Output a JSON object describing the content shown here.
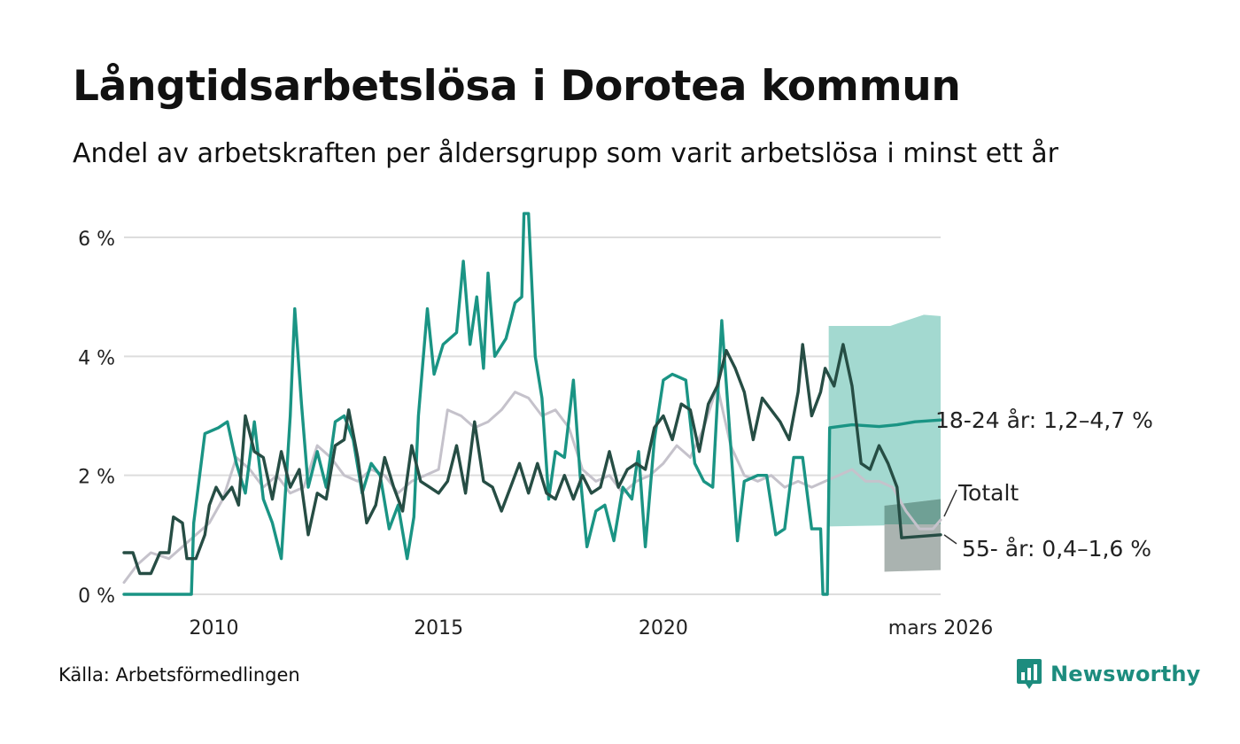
{
  "title": "Långtidsarbetslösa i Dorotea kommun",
  "subtitle": "Andel av arbetskraften per åldersgrupp som varit arbetslösa i minst ett år",
  "source": "Källa: Arbetsförmedlingen",
  "brand": {
    "name": "Newsworthy",
    "icon": "newsworthy-logo-icon"
  },
  "colors": {
    "total": "#c5c2cb",
    "youth": "#1a9484",
    "youth_band": "#a3d9d0",
    "senior": "#264d44",
    "senior_band": "#aab3b0",
    "senior_band_overlap": "#6fa095",
    "grid": "#dddddd"
  },
  "chart_data": {
    "type": "line",
    "title": "Långtidsarbetslösa i Dorotea kommun",
    "xlabel": "",
    "ylabel": "",
    "x_range": [
      2008.0,
      2026.17
    ],
    "ylim": [
      0,
      6.6
    ],
    "y_ticks": [
      0,
      2,
      4,
      6
    ],
    "y_tick_labels": [
      "0 %",
      "2 %",
      "4 %",
      "6 %"
    ],
    "x_ticks": [
      2010,
      2015,
      2020,
      2026.17
    ],
    "x_tick_labels": [
      "2010",
      "2015",
      "2020",
      "mars 2026"
    ],
    "grid": true,
    "series": [
      {
        "name": "Totalt",
        "key": "total",
        "label": "Totalt",
        "points": [
          [
            2008.0,
            0.2
          ],
          [
            2008.3,
            0.5
          ],
          [
            2008.6,
            0.7
          ],
          [
            2009.0,
            0.6
          ],
          [
            2009.3,
            0.8
          ],
          [
            2009.6,
            1.0
          ],
          [
            2009.9,
            1.2
          ],
          [
            2010.2,
            1.6
          ],
          [
            2010.5,
            2.3
          ],
          [
            2010.8,
            2.1
          ],
          [
            2011.1,
            1.8
          ],
          [
            2011.4,
            2.0
          ],
          [
            2011.7,
            1.7
          ],
          [
            2012.0,
            1.8
          ],
          [
            2012.3,
            2.5
          ],
          [
            2012.6,
            2.3
          ],
          [
            2012.9,
            2.0
          ],
          [
            2013.2,
            1.9
          ],
          [
            2013.5,
            2.1
          ],
          [
            2013.8,
            2.0
          ],
          [
            2014.1,
            1.7
          ],
          [
            2014.4,
            1.9
          ],
          [
            2014.7,
            2.0
          ],
          [
            2015.0,
            2.1
          ],
          [
            2015.2,
            3.1
          ],
          [
            2015.5,
            3.0
          ],
          [
            2015.8,
            2.8
          ],
          [
            2016.1,
            2.9
          ],
          [
            2016.4,
            3.1
          ],
          [
            2016.7,
            3.4
          ],
          [
            2017.0,
            3.3
          ],
          [
            2017.3,
            3.0
          ],
          [
            2017.6,
            3.1
          ],
          [
            2017.9,
            2.8
          ],
          [
            2018.2,
            2.1
          ],
          [
            2018.5,
            1.9
          ],
          [
            2018.8,
            2.0
          ],
          [
            2019.1,
            1.7
          ],
          [
            2019.4,
            1.9
          ],
          [
            2019.7,
            2.0
          ],
          [
            2020.0,
            2.2
          ],
          [
            2020.3,
            2.5
          ],
          [
            2020.6,
            2.3
          ],
          [
            2020.9,
            2.8
          ],
          [
            2021.2,
            3.5
          ],
          [
            2021.5,
            2.5
          ],
          [
            2021.8,
            2.0
          ],
          [
            2022.1,
            1.9
          ],
          [
            2022.4,
            2.0
          ],
          [
            2022.7,
            1.8
          ],
          [
            2023.0,
            1.9
          ],
          [
            2023.3,
            1.8
          ],
          [
            2023.6,
            1.9
          ],
          [
            2023.9,
            2.0
          ],
          [
            2024.2,
            2.1
          ],
          [
            2024.5,
            1.9
          ],
          [
            2024.8,
            1.9
          ],
          [
            2025.1,
            1.8
          ],
          [
            2025.4,
            1.4
          ],
          [
            2025.7,
            1.1
          ],
          [
            2026.0,
            1.1
          ],
          [
            2026.17,
            1.25
          ]
        ]
      },
      {
        "name": "18-24 år",
        "key": "youth",
        "label": "18-24 år: 1,2–4,7 %",
        "band": [
          1.2,
          4.7
        ],
        "points": [
          [
            2008.0,
            0.0
          ],
          [
            2009.5,
            0.0
          ],
          [
            2009.55,
            1.2
          ],
          [
            2009.8,
            2.7
          ],
          [
            2010.1,
            2.8
          ],
          [
            2010.3,
            2.9
          ],
          [
            2010.5,
            2.2
          ],
          [
            2010.7,
            1.7
          ],
          [
            2010.9,
            2.9
          ],
          [
            2011.1,
            1.6
          ],
          [
            2011.3,
            1.2
          ],
          [
            2011.5,
            0.6
          ],
          [
            2011.7,
            3.0
          ],
          [
            2011.8,
            4.8
          ],
          [
            2011.95,
            3.2
          ],
          [
            2012.1,
            1.8
          ],
          [
            2012.3,
            2.4
          ],
          [
            2012.5,
            1.8
          ],
          [
            2012.7,
            2.9
          ],
          [
            2012.9,
            3.0
          ],
          [
            2013.1,
            2.6
          ],
          [
            2013.3,
            1.7
          ],
          [
            2013.5,
            2.2
          ],
          [
            2013.7,
            2.0
          ],
          [
            2013.9,
            1.1
          ],
          [
            2014.1,
            1.5
          ],
          [
            2014.3,
            0.6
          ],
          [
            2014.45,
            1.3
          ],
          [
            2014.55,
            3.0
          ],
          [
            2014.75,
            4.8
          ],
          [
            2014.9,
            3.7
          ],
          [
            2015.1,
            4.2
          ],
          [
            2015.4,
            4.4
          ],
          [
            2015.55,
            5.6
          ],
          [
            2015.7,
            4.2
          ],
          [
            2015.85,
            5.0
          ],
          [
            2016.0,
            3.8
          ],
          [
            2016.1,
            5.4
          ],
          [
            2016.25,
            4.0
          ],
          [
            2016.5,
            4.3
          ],
          [
            2016.7,
            4.9
          ],
          [
            2016.85,
            5.0
          ],
          [
            2016.9,
            6.4
          ],
          [
            2017.0,
            6.4
          ],
          [
            2017.15,
            4.0
          ],
          [
            2017.3,
            3.3
          ],
          [
            2017.45,
            1.6
          ],
          [
            2017.6,
            2.4
          ],
          [
            2017.8,
            2.3
          ],
          [
            2018.0,
            3.6
          ],
          [
            2018.15,
            2.0
          ],
          [
            2018.3,
            0.8
          ],
          [
            2018.5,
            1.4
          ],
          [
            2018.7,
            1.5
          ],
          [
            2018.9,
            0.9
          ],
          [
            2019.1,
            1.8
          ],
          [
            2019.3,
            1.6
          ],
          [
            2019.45,
            2.4
          ],
          [
            2019.6,
            0.8
          ],
          [
            2019.8,
            2.6
          ],
          [
            2020.0,
            3.6
          ],
          [
            2020.2,
            3.7
          ],
          [
            2020.5,
            3.6
          ],
          [
            2020.7,
            2.2
          ],
          [
            2020.9,
            1.9
          ],
          [
            2021.1,
            1.8
          ],
          [
            2021.3,
            4.6
          ],
          [
            2021.5,
            2.5
          ],
          [
            2021.65,
            0.9
          ],
          [
            2021.8,
            1.9
          ],
          [
            2022.1,
            2.0
          ],
          [
            2022.3,
            2.0
          ],
          [
            2022.5,
            1.0
          ],
          [
            2022.7,
            1.1
          ],
          [
            2022.9,
            2.3
          ],
          [
            2023.1,
            2.3
          ],
          [
            2023.3,
            1.1
          ],
          [
            2023.5,
            1.1
          ],
          [
            2023.55,
            0.0
          ],
          [
            2023.65,
            0.0
          ],
          [
            2023.7,
            2.8
          ],
          [
            2024.2,
            2.85
          ],
          [
            2024.8,
            2.82
          ],
          [
            2025.2,
            2.85
          ],
          [
            2025.6,
            2.9
          ],
          [
            2026.17,
            2.93
          ]
        ]
      },
      {
        "name": "55- år",
        "key": "senior",
        "label": "55- år: 0,4–1,6 %",
        "band": [
          0.4,
          1.6
        ],
        "points": [
          [
            2008.0,
            0.7
          ],
          [
            2008.2,
            0.7
          ],
          [
            2008.35,
            0.35
          ],
          [
            2008.6,
            0.35
          ],
          [
            2008.8,
            0.7
          ],
          [
            2009.0,
            0.7
          ],
          [
            2009.1,
            1.3
          ],
          [
            2009.3,
            1.2
          ],
          [
            2009.4,
            0.6
          ],
          [
            2009.6,
            0.6
          ],
          [
            2009.8,
            1.0
          ],
          [
            2009.9,
            1.5
          ],
          [
            2010.05,
            1.8
          ],
          [
            2010.2,
            1.6
          ],
          [
            2010.4,
            1.8
          ],
          [
            2010.55,
            1.5
          ],
          [
            2010.7,
            3.0
          ],
          [
            2010.9,
            2.4
          ],
          [
            2011.1,
            2.3
          ],
          [
            2011.3,
            1.6
          ],
          [
            2011.5,
            2.4
          ],
          [
            2011.7,
            1.8
          ],
          [
            2011.9,
            2.1
          ],
          [
            2012.1,
            1.0
          ],
          [
            2012.3,
            1.7
          ],
          [
            2012.5,
            1.6
          ],
          [
            2012.7,
            2.5
          ],
          [
            2012.9,
            2.6
          ],
          [
            2013.0,
            3.1
          ],
          [
            2013.2,
            2.3
          ],
          [
            2013.4,
            1.2
          ],
          [
            2013.6,
            1.5
          ],
          [
            2013.8,
            2.3
          ],
          [
            2014.0,
            1.8
          ],
          [
            2014.2,
            1.4
          ],
          [
            2014.4,
            2.5
          ],
          [
            2014.6,
            1.9
          ],
          [
            2014.8,
            1.8
          ],
          [
            2015.0,
            1.7
          ],
          [
            2015.2,
            1.9
          ],
          [
            2015.4,
            2.5
          ],
          [
            2015.6,
            1.7
          ],
          [
            2015.8,
            2.9
          ],
          [
            2016.0,
            1.9
          ],
          [
            2016.2,
            1.8
          ],
          [
            2016.4,
            1.4
          ],
          [
            2016.6,
            1.8
          ],
          [
            2016.8,
            2.2
          ],
          [
            2017.0,
            1.7
          ],
          [
            2017.2,
            2.2
          ],
          [
            2017.4,
            1.7
          ],
          [
            2017.6,
            1.6
          ],
          [
            2017.8,
            2.0
          ],
          [
            2018.0,
            1.6
          ],
          [
            2018.2,
            2.0
          ],
          [
            2018.4,
            1.7
          ],
          [
            2018.6,
            1.8
          ],
          [
            2018.8,
            2.4
          ],
          [
            2019.0,
            1.8
          ],
          [
            2019.2,
            2.1
          ],
          [
            2019.4,
            2.2
          ],
          [
            2019.6,
            2.1
          ],
          [
            2019.8,
            2.8
          ],
          [
            2020.0,
            3.0
          ],
          [
            2020.2,
            2.6
          ],
          [
            2020.4,
            3.2
          ],
          [
            2020.6,
            3.1
          ],
          [
            2020.8,
            2.4
          ],
          [
            2021.0,
            3.2
          ],
          [
            2021.2,
            3.5
          ],
          [
            2021.4,
            4.1
          ],
          [
            2021.6,
            3.8
          ],
          [
            2021.8,
            3.4
          ],
          [
            2022.0,
            2.6
          ],
          [
            2022.2,
            3.3
          ],
          [
            2022.4,
            3.1
          ],
          [
            2022.6,
            2.9
          ],
          [
            2022.8,
            2.6
          ],
          [
            2023.0,
            3.4
          ],
          [
            2023.1,
            4.2
          ],
          [
            2023.3,
            3.0
          ],
          [
            2023.5,
            3.4
          ],
          [
            2023.6,
            3.8
          ],
          [
            2023.8,
            3.5
          ],
          [
            2024.0,
            4.2
          ],
          [
            2024.2,
            3.5
          ],
          [
            2024.4,
            2.2
          ],
          [
            2024.6,
            2.1
          ],
          [
            2024.8,
            2.5
          ],
          [
            2025.0,
            2.2
          ],
          [
            2025.2,
            1.8
          ],
          [
            2025.3,
            0.95
          ],
          [
            2026.17,
            1.0
          ]
        ]
      }
    ],
    "forecast_start": 2023.68,
    "senior_band_start": 2024.92,
    "annotations": [
      {
        "series": "youth",
        "text": "18-24 år: 1,2–4,7 %"
      },
      {
        "series": "total",
        "text": "Totalt"
      },
      {
        "series": "senior",
        "text": "55- år: 0,4–1,6 %"
      }
    ]
  }
}
